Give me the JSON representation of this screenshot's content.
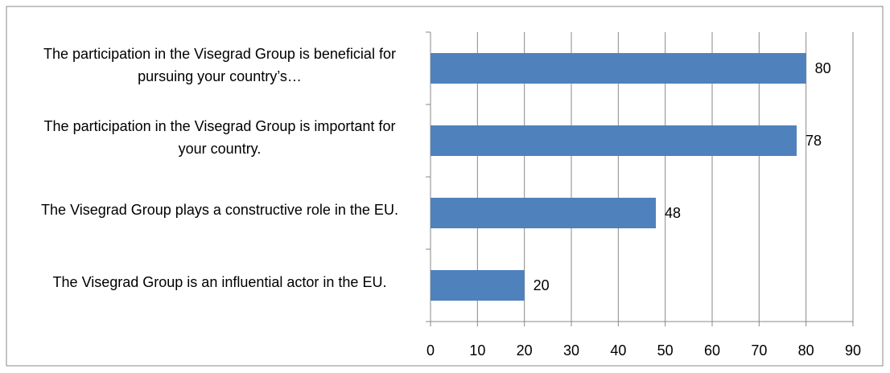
{
  "chart_data": {
    "type": "bar",
    "orientation": "horizontal",
    "categories": [
      "The participation in the Visegrad Group is beneficial for pursuing your country’s…",
      "The participation in the Visegrad Group is important for your country.",
      "The Visegrad Group plays a constructive role in the EU.",
      "The Visegrad Group is an influential actor in the EU."
    ],
    "values": [
      80,
      78,
      48,
      20
    ],
    "color": "#4f81bd",
    "xlim": [
      0,
      90
    ],
    "xticks": [
      0,
      10,
      20,
      30,
      40,
      50,
      60,
      70,
      80,
      90
    ],
    "grid": true
  }
}
